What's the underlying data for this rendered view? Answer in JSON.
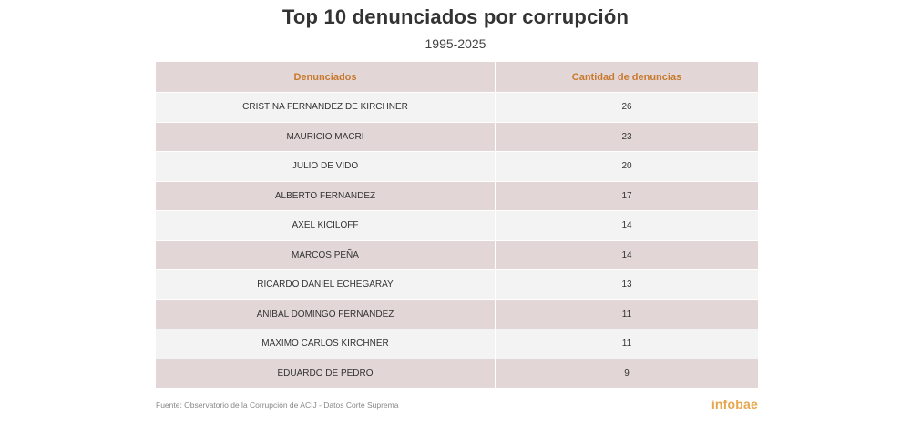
{
  "title": "Top 10 denunciados por corrupción",
  "subtitle": "1995-2025",
  "source": "Fuente: Observatorio de la Corrupción de ACIJ - Datos Corte Suprema",
  "logo": "infobae",
  "colors": {
    "header_text": "#c8792d",
    "header_bg": "#e2d7d6",
    "row_alt_bg": "#e2d7d6",
    "row_bg": "#f3f3f3",
    "logo": "#e8a54c"
  },
  "chart_data": {
    "type": "table",
    "columns": [
      "Denunciados",
      "Cantidad de denuncias"
    ],
    "rows": [
      {
        "name": "CRISTINA FERNANDEZ DE KIRCHNER",
        "count": 26
      },
      {
        "name": "MAURICIO MACRI",
        "count": 23
      },
      {
        "name": "JULIO DE VIDO",
        "count": 20
      },
      {
        "name": "ALBERTO FERNANDEZ",
        "count": 17
      },
      {
        "name": "AXEL KICILOFF",
        "count": 14
      },
      {
        "name": "MARCOS PEÑA",
        "count": 14
      },
      {
        "name": "RICARDO DANIEL ECHEGARAY",
        "count": 13
      },
      {
        "name": "ANIBAL DOMINGO FERNANDEZ",
        "count": 11
      },
      {
        "name": "MAXIMO CARLOS KIRCHNER",
        "count": 11
      },
      {
        "name": "EDUARDO DE PEDRO",
        "count": 9
      }
    ]
  }
}
